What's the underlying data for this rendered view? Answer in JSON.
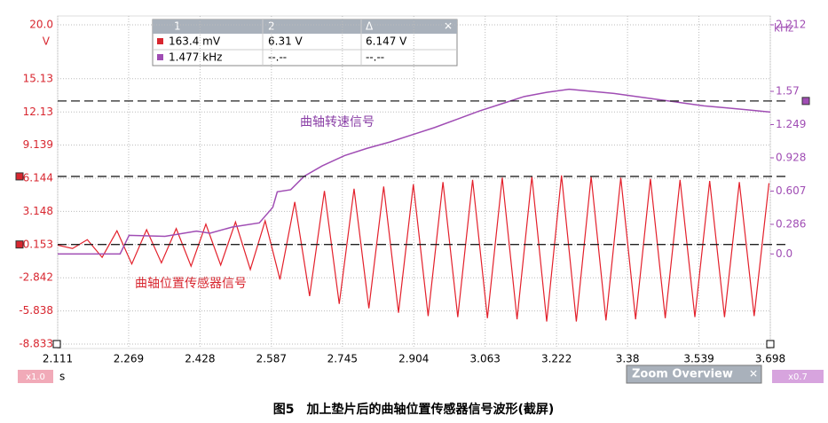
{
  "chart_data": {
    "type": "line",
    "xlim": [
      2.111,
      3.698
    ],
    "xticks": [
      2.111,
      2.269,
      2.428,
      2.587,
      2.745,
      2.904,
      3.063,
      3.222,
      3.38,
      3.539,
      3.698
    ],
    "x_unit": "s",
    "ylim": [
      -8.833,
      20.0
    ],
    "yticks": [
      {
        "value": 20.0,
        "label": "20.0"
      },
      15.13,
      12.13,
      9.139,
      6.144,
      3.148,
      0.153,
      -2.842,
      -5.838,
      -8.833
    ],
    "y_unit": "V",
    "y2lim": [
      -0.87,
      2.212
    ],
    "y2ticks": [
      2.212,
      1.57,
      1.249,
      0.928,
      0.607,
      0.286,
      {
        "value": 0,
        "label": "0.0"
      }
    ],
    "y2_unit": "kHz",
    "grid": true,
    "series": [
      {
        "name": "曲轴位置传感器信号",
        "color": "#e3202b",
        "x": [
          2.111,
          2.144,
          2.177,
          2.21,
          2.243,
          2.276,
          2.309,
          2.342,
          2.375,
          2.408,
          2.441,
          2.474,
          2.507,
          2.54,
          2.573,
          2.606,
          2.639,
          2.672,
          2.705,
          2.738,
          2.771,
          2.804,
          2.837,
          2.87,
          2.903,
          2.936,
          2.969,
          3.002,
          3.035,
          3.068,
          3.101,
          3.134,
          3.167,
          3.2,
          3.233,
          3.266,
          3.299,
          3.332,
          3.365,
          3.398,
          3.431,
          3.464,
          3.497,
          3.53,
          3.563,
          3.596,
          3.629,
          3.662,
          3.695
        ],
        "values": [
          0.1,
          -0.2,
          0.6,
          -1.0,
          1.4,
          -1.6,
          1.5,
          -1.5,
          1.6,
          -1.8,
          2.0,
          -1.7,
          2.2,
          -2.1,
          2.3,
          -3.0,
          4.0,
          -4.5,
          5.0,
          -5.2,
          5.2,
          -5.6,
          5.4,
          -6.0,
          5.6,
          -6.3,
          5.8,
          -6.4,
          6.0,
          -6.5,
          6.2,
          -6.6,
          6.3,
          -6.8,
          6.4,
          -6.8,
          6.3,
          -6.7,
          6.2,
          -6.6,
          6.1,
          -6.5,
          6.0,
          -6.4,
          5.9,
          -6.4,
          5.8,
          -6.3,
          5.7
        ]
      },
      {
        "name": "曲轴转速信号",
        "color": "#a04db4",
        "axis": "y2",
        "x": [
          2.111,
          2.2,
          2.25,
          2.27,
          2.35,
          2.42,
          2.45,
          2.5,
          2.56,
          2.59,
          2.6,
          2.63,
          2.66,
          2.7,
          2.75,
          2.8,
          2.85,
          2.9,
          2.95,
          3.0,
          3.05,
          3.1,
          3.15,
          3.2,
          3.25,
          3.3,
          3.35,
          3.4,
          3.45,
          3.5,
          3.55,
          3.6,
          3.65,
          3.698
        ],
        "values": [
          0.0,
          0.0,
          0.0,
          0.18,
          0.17,
          0.22,
          0.2,
          0.26,
          0.3,
          0.45,
          0.6,
          0.62,
          0.75,
          0.85,
          0.95,
          1.02,
          1.08,
          1.15,
          1.22,
          1.3,
          1.38,
          1.45,
          1.52,
          1.56,
          1.59,
          1.57,
          1.55,
          1.52,
          1.49,
          1.46,
          1.43,
          1.41,
          1.39,
          1.37
        ]
      }
    ]
  },
  "measurement": {
    "columns": [
      "1",
      "2",
      "Δ"
    ],
    "rows": [
      [
        {
          "value": 0.1634,
          "label": "163.4 mV"
        },
        {
          "value": 6.31,
          "label": "6.31 V"
        },
        "6.147 V"
      ],
      [
        {
          "value": 1.477,
          "label": "1.477 kHz"
        },
        "--.--",
        "--.--"
      ]
    ]
  },
  "zoom": {
    "left": "x1.0",
    "overview": "Zoom Overview",
    "right": "x0.7"
  },
  "caption": "图5　加上垫片后的曲轴位置传感器信号波形(截屏)"
}
